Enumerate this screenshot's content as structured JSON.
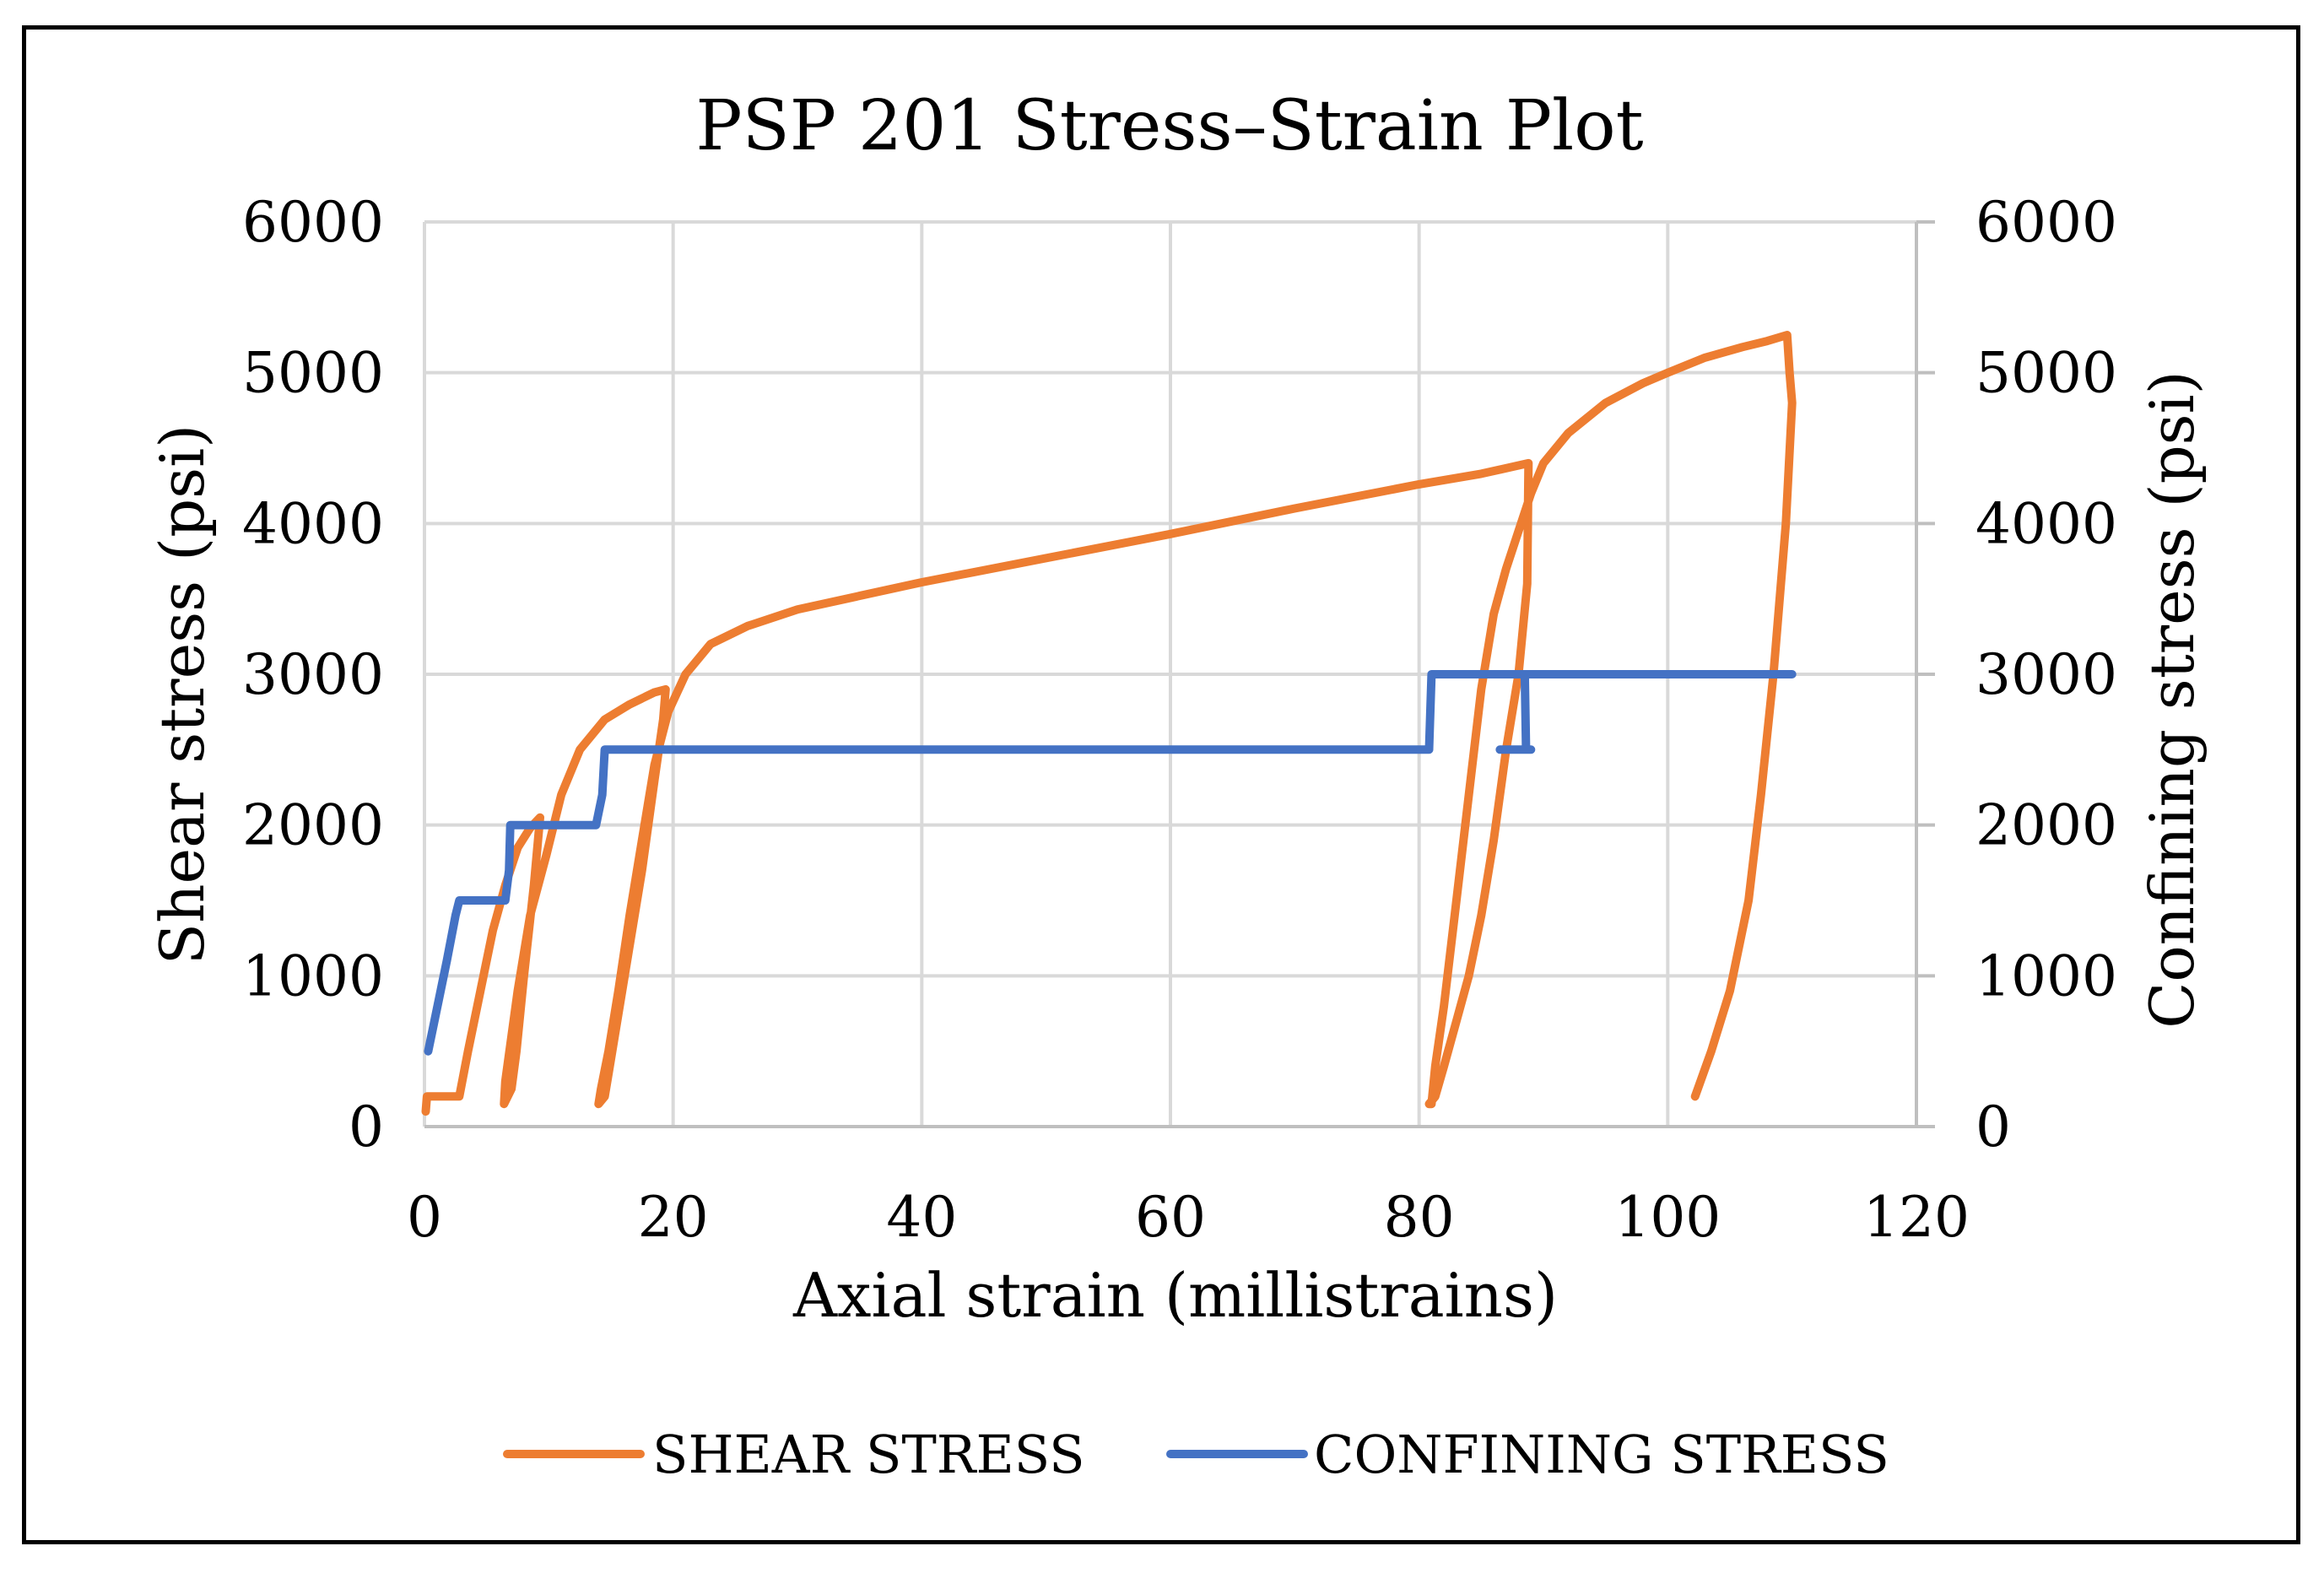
{
  "chart_data": {
    "type": "line",
    "title": "PSP 201 Stress–Strain Plot",
    "xlabel": "Axial strain (millistrains)",
    "ylabel": "Shear stress (psi)",
    "y2label": "Confining stress (psi)",
    "xlim": [
      0,
      120
    ],
    "ylim": [
      0,
      6000
    ],
    "y2lim": [
      0,
      6000
    ],
    "x_ticks": [
      0,
      20,
      40,
      60,
      80,
      100,
      120
    ],
    "y_ticks": [
      0,
      1000,
      2000,
      3000,
      4000,
      5000,
      6000
    ],
    "y2_ticks": [
      0,
      1000,
      2000,
      3000,
      4000,
      5000,
      6000
    ],
    "grid": true,
    "legend_position": "bottom",
    "series": [
      {
        "name": "SHEAR STRESS",
        "color": "#ED7D31",
        "axis": "left",
        "points": [
          [
            0.1,
            100
          ],
          [
            0.2,
            200
          ],
          [
            2.8,
            200
          ],
          [
            3.5,
            500
          ],
          [
            4.5,
            900
          ],
          [
            5.5,
            1300
          ],
          [
            6.5,
            1600
          ],
          [
            7.5,
            1850
          ],
          [
            8.5,
            1980
          ],
          [
            9.3,
            2050
          ],
          [
            8.8,
            1600
          ],
          [
            8.0,
            1000
          ],
          [
            7.4,
            500
          ],
          [
            7.0,
            250
          ],
          [
            6.4,
            150
          ],
          [
            6.5,
            300
          ],
          [
            7.5,
            900
          ],
          [
            8.5,
            1400
          ],
          [
            9.8,
            1800
          ],
          [
            11.0,
            2200
          ],
          [
            12.5,
            2500
          ],
          [
            14.5,
            2700
          ],
          [
            16.5,
            2800
          ],
          [
            18.5,
            2880
          ],
          [
            19.4,
            2900
          ],
          [
            19.2,
            2700
          ],
          [
            18.5,
            2300
          ],
          [
            17.5,
            1700
          ],
          [
            16.5,
            1200
          ],
          [
            15.5,
            700
          ],
          [
            14.8,
            350
          ],
          [
            14.5,
            200
          ],
          [
            14.0,
            150
          ],
          [
            14.2,
            250
          ],
          [
            14.8,
            500
          ],
          [
            15.6,
            900
          ],
          [
            16.5,
            1400
          ],
          [
            17.5,
            1900
          ],
          [
            18.5,
            2400
          ],
          [
            19.6,
            2750
          ],
          [
            21.0,
            3000
          ],
          [
            23.0,
            3200
          ],
          [
            26.0,
            3320
          ],
          [
            30.0,
            3430
          ],
          [
            40.0,
            3610
          ],
          [
            50.0,
            3770
          ],
          [
            60.0,
            3930
          ],
          [
            70.0,
            4100
          ],
          [
            80.0,
            4260
          ],
          [
            85.0,
            4330
          ],
          [
            88.8,
            4400
          ],
          [
            88.7,
            3600
          ],
          [
            88.0,
            3000
          ],
          [
            87.0,
            2500
          ],
          [
            86.0,
            1900
          ],
          [
            85.0,
            1400
          ],
          [
            84.0,
            1000
          ],
          [
            83.0,
            700
          ],
          [
            82.0,
            400
          ],
          [
            81.3,
            200
          ],
          [
            80.8,
            150
          ],
          [
            81.0,
            150
          ],
          [
            81.3,
            400
          ],
          [
            82.0,
            800
          ],
          [
            83.0,
            1500
          ],
          [
            84.0,
            2200
          ],
          [
            85.0,
            2900
          ],
          [
            86.0,
            3400
          ],
          [
            87.0,
            3700
          ],
          [
            88.0,
            3950
          ],
          [
            89.0,
            4200
          ],
          [
            90.0,
            4400
          ],
          [
            92.0,
            4600
          ],
          [
            95.0,
            4800
          ],
          [
            98.0,
            4930
          ],
          [
            100.0,
            5000
          ],
          [
            103.0,
            5100
          ],
          [
            106.0,
            5170
          ],
          [
            108.0,
            5210
          ],
          [
            109.6,
            5250
          ],
          [
            109.8,
            5000
          ],
          [
            110.0,
            4800
          ],
          [
            109.5,
            4000
          ],
          [
            108.5,
            3000
          ],
          [
            107.5,
            2200
          ],
          [
            106.5,
            1500
          ],
          [
            105.0,
            900
          ],
          [
            103.5,
            500
          ],
          [
            102.2,
            200
          ]
        ]
      },
      {
        "name": "CONFINING STRESS",
        "color": "#4472C4",
        "axis": "right",
        "points": [
          [
            0.3,
            500
          ],
          [
            0.8,
            700
          ],
          [
            1.8,
            1100
          ],
          [
            2.5,
            1400
          ],
          [
            2.8,
            1500
          ],
          [
            6.5,
            1500
          ],
          [
            6.8,
            1700
          ],
          [
            6.9,
            2000
          ],
          [
            10.5,
            2000
          ],
          [
            10.6,
            2000
          ],
          [
            13.8,
            2000
          ],
          [
            14.3,
            2200
          ],
          [
            14.5,
            2500
          ],
          [
            19.8,
            2500
          ],
          [
            80.8,
            2500
          ],
          [
            81.0,
            3000
          ],
          [
            110.0,
            3000
          ],
          [
            110.0,
            3000
          ],
          [
            88.5,
            3000
          ],
          [
            88.6,
            2500
          ],
          [
            89.0,
            2500
          ],
          [
            86.5,
            2500
          ]
        ]
      }
    ]
  }
}
